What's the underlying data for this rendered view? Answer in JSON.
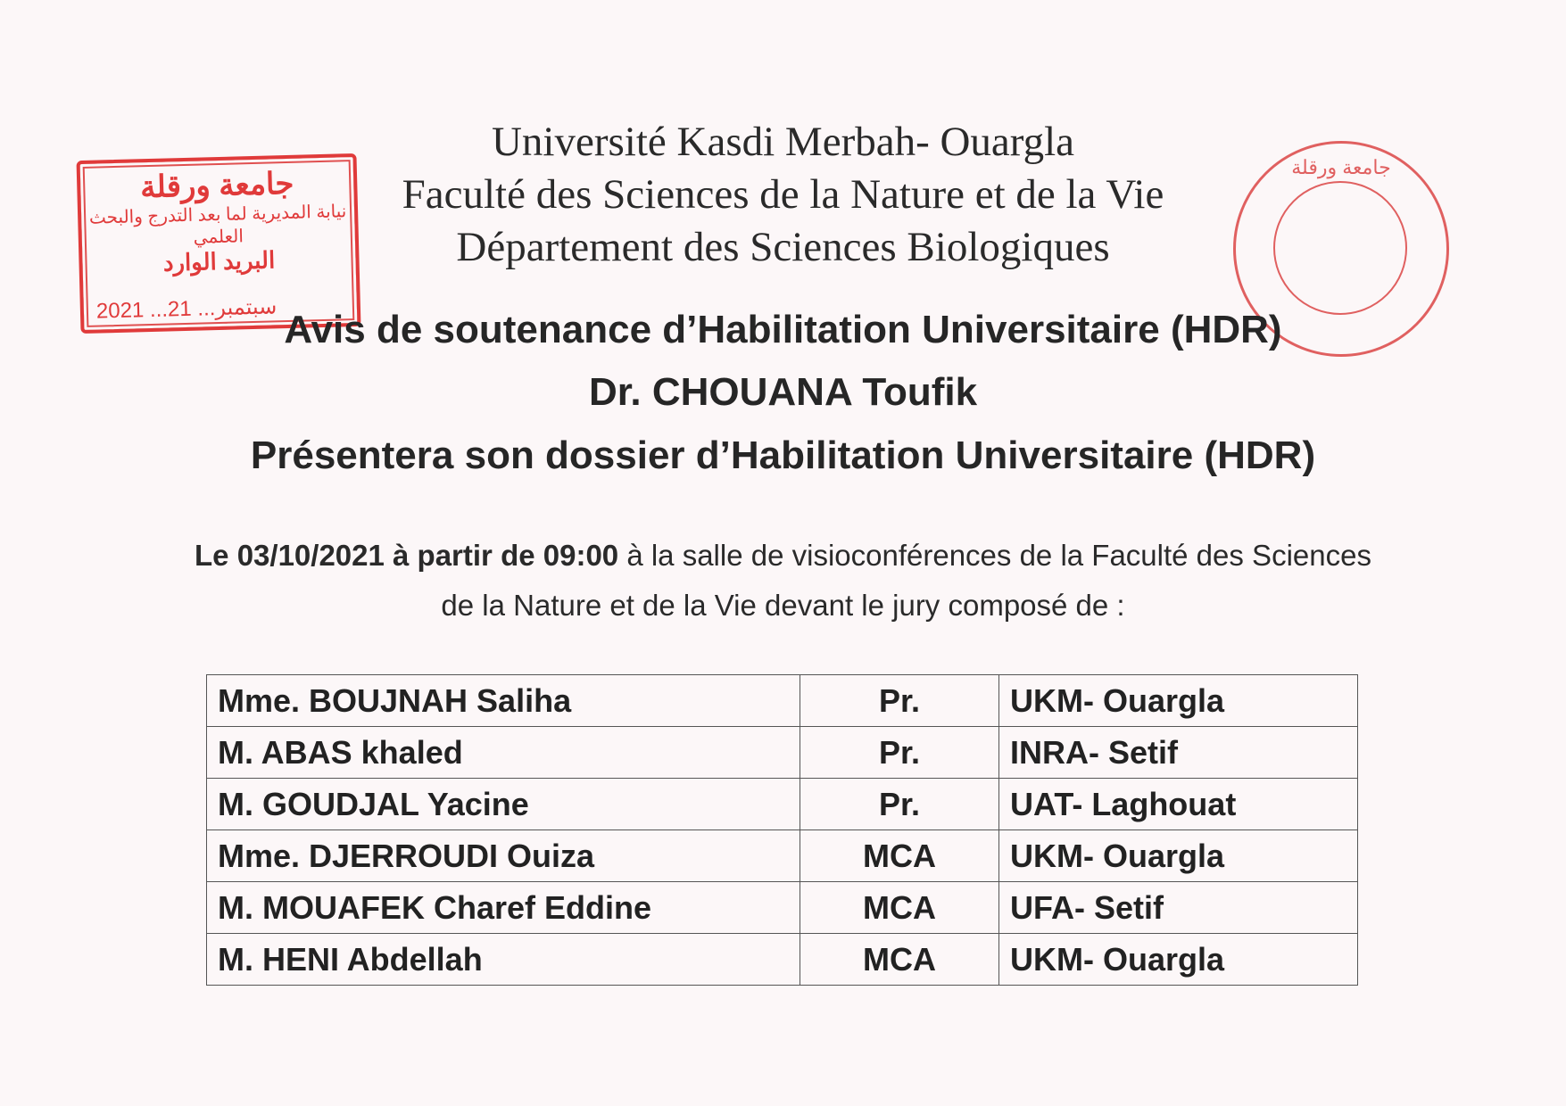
{
  "header": {
    "university": "Université Kasdi Merbah- Ouargla",
    "faculty": "Faculté des Sciences de la Nature et de la Vie",
    "department": "Département des Sciences Biologiques"
  },
  "stamps": {
    "received_stamp": {
      "line1": "جامعة ورقلة",
      "line2": "نيابة المديرية لما بعد التدرج والبحث العلمي",
      "line3": "البريد الوارد",
      "date": "2021 ...سبتمبر... 21"
    },
    "department_seal": {
      "text": "جامعة ورقلة"
    },
    "stamp_color": "#e03a3a"
  },
  "title": "Avis de soutenance d’Habilitation Universitaire (HDR)",
  "candidate": "Dr. CHOUANA Toufik",
  "subtitle": "Présentera son dossier d’Habilitation Universitaire (HDR)",
  "announcement": {
    "bold_part": "Le 03/10/2021 à partir de 09:00",
    "rest_line1": " à la salle de visioconférences de la Faculté des Sciences",
    "line2": "de la Nature et de la Vie devant le jury composé de :"
  },
  "jury": [
    {
      "name": "Mme. BOUJNAH Saliha",
      "grade": "Pr.",
      "institution": "UKM- Ouargla"
    },
    {
      "name": "M. ABAS khaled",
      "grade": "Pr.",
      "institution": "INRA- Setif"
    },
    {
      "name": "M. GOUDJAL Yacine",
      "grade": "Pr.",
      "institution": "UAT- Laghouat"
    },
    {
      "name": "Mme. DJERROUDI Ouiza",
      "grade": "MCA",
      "institution": "UKM- Ouargla"
    },
    {
      "name": "M. MOUAFEK Charef Eddine",
      "grade": "MCA",
      "institution": "UFA- Setif"
    },
    {
      "name": "M. HENI Abdellah",
      "grade": "MCA",
      "institution": "UKM- Ouargla"
    }
  ]
}
